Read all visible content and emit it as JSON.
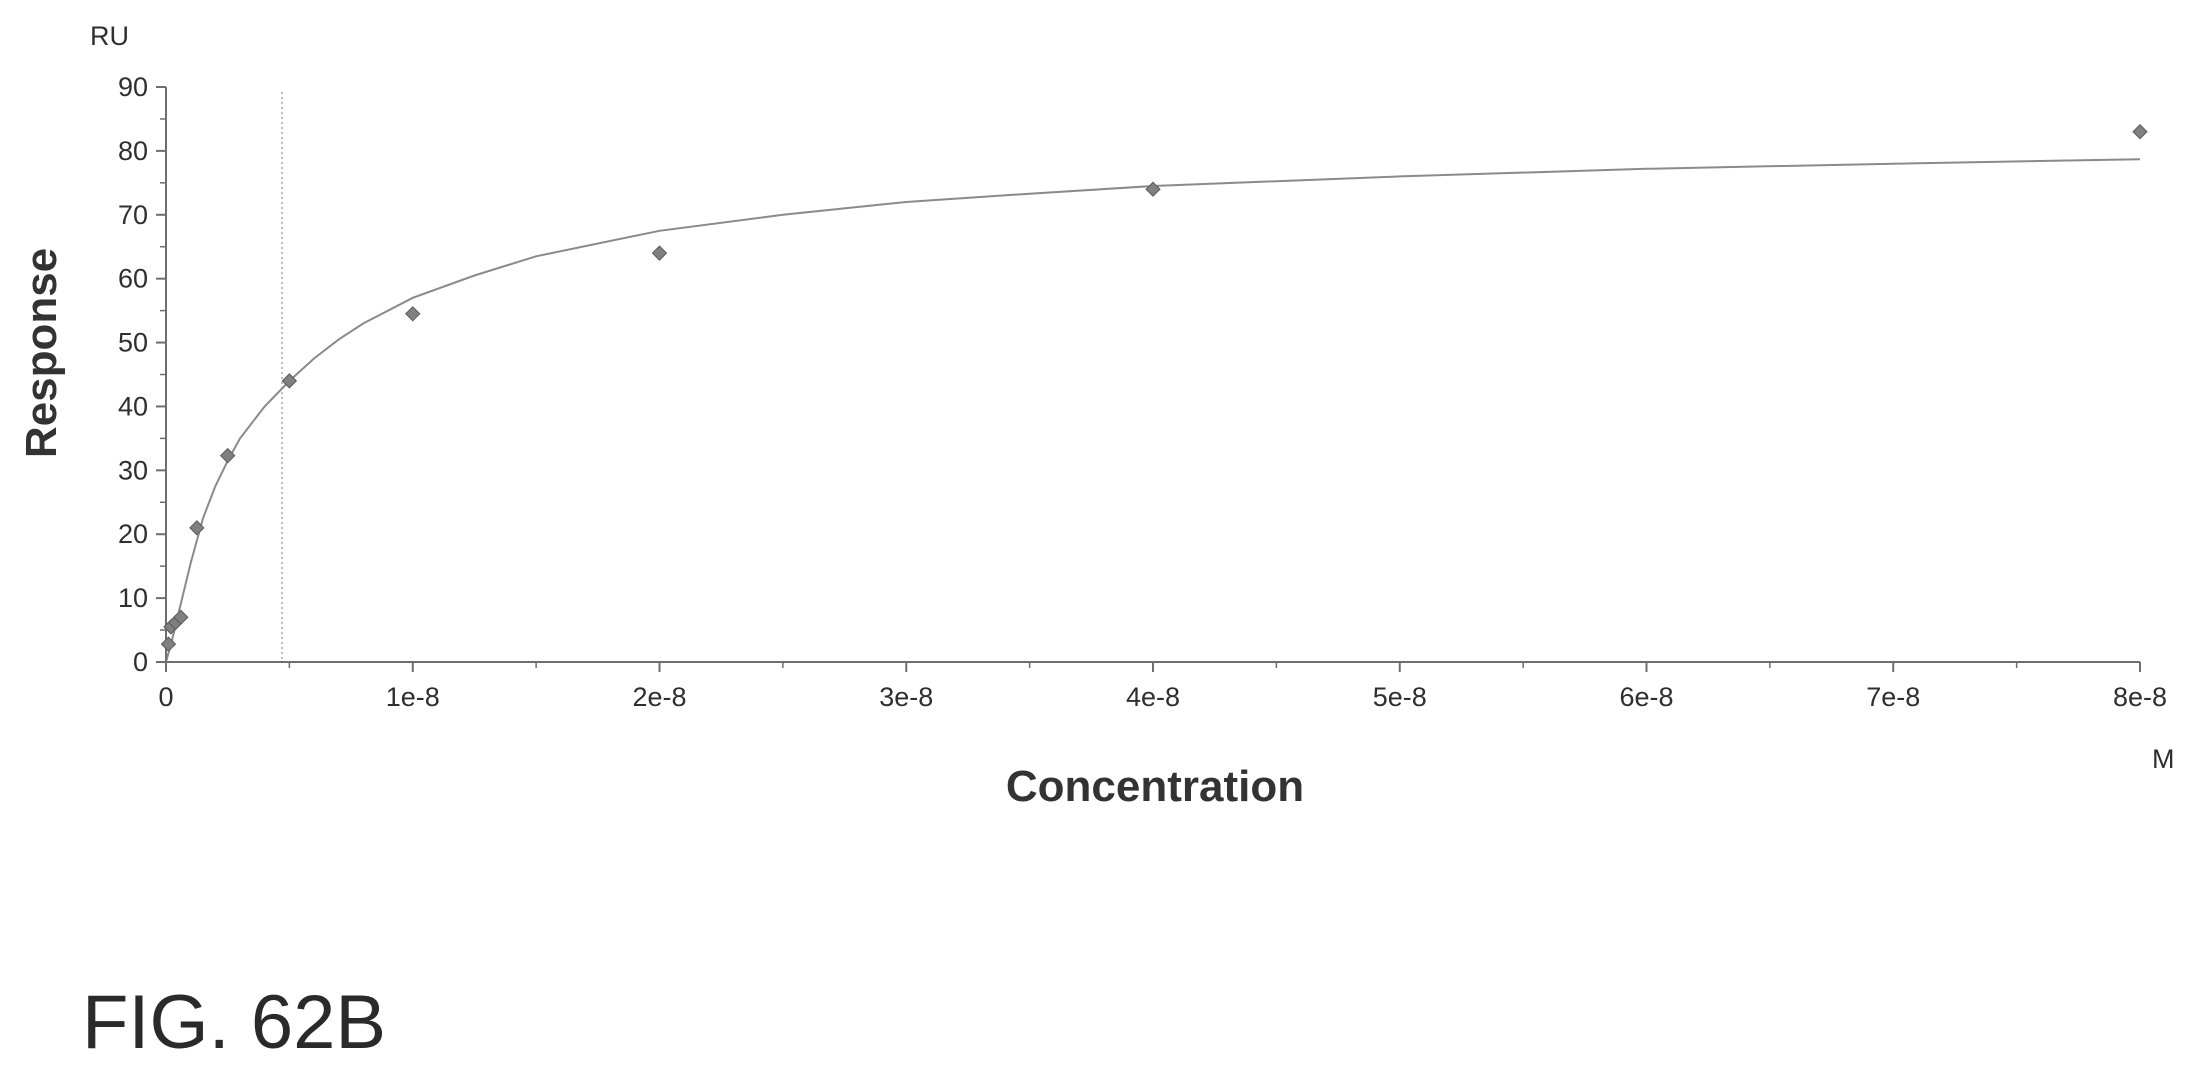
{
  "figure_label": "FIG. 62B",
  "chart_data": {
    "type": "scatter",
    "xlabel": "Concentration",
    "ylabel": "Response",
    "x_unit": "M",
    "y_unit": "RU",
    "xlim": [
      0,
      8e-08
    ],
    "ylim": [
      0,
      90
    ],
    "x_ticks": [
      {
        "value": 0,
        "label": "0"
      },
      {
        "value": 1e-08,
        "label": "1e-8"
      },
      {
        "value": 2e-08,
        "label": "2e-8"
      },
      {
        "value": 3e-08,
        "label": "3e-8"
      },
      {
        "value": 4e-08,
        "label": "4e-8"
      },
      {
        "value": 5e-08,
        "label": "5e-8"
      },
      {
        "value": 6e-08,
        "label": "6e-8"
      },
      {
        "value": 7e-08,
        "label": "7e-8"
      },
      {
        "value": 8e-08,
        "label": "8e-8"
      }
    ],
    "y_ticks": [
      {
        "value": 0,
        "label": "0"
      },
      {
        "value": 10,
        "label": "10"
      },
      {
        "value": 20,
        "label": "20"
      },
      {
        "value": 30,
        "label": "30"
      },
      {
        "value": 40,
        "label": "40"
      },
      {
        "value": 50,
        "label": "50"
      },
      {
        "value": 60,
        "label": "60"
      },
      {
        "value": 70,
        "label": "70"
      },
      {
        "value": 80,
        "label": "80"
      },
      {
        "value": 90,
        "label": "90"
      }
    ],
    "points": [
      {
        "x": 1e-10,
        "y": 2.8
      },
      {
        "x": 2e-10,
        "y": 5.5
      },
      {
        "x": 3.9e-10,
        "y": 6.2
      },
      {
        "x": 6e-10,
        "y": 7.0
      },
      {
        "x": 1.25e-09,
        "y": 21.0
      },
      {
        "x": 2.5e-09,
        "y": 32.3
      },
      {
        "x": 5e-09,
        "y": 44.0
      },
      {
        "x": 1e-08,
        "y": 54.5
      },
      {
        "x": 2e-08,
        "y": 64.0
      },
      {
        "x": 4e-08,
        "y": 74.0
      },
      {
        "x": 8e-08,
        "y": 83.0
      }
    ],
    "fit_curve": [
      {
        "x": 0,
        "y": 0
      },
      {
        "x": 2.5e-10,
        "y": 3.5
      },
      {
        "x": 5e-10,
        "y": 7.5
      },
      {
        "x": 1e-09,
        "y": 15.5
      },
      {
        "x": 1.5e-09,
        "y": 22.5
      },
      {
        "x": 2e-09,
        "y": 27.5
      },
      {
        "x": 2.5e-09,
        "y": 31.5
      },
      {
        "x": 3e-09,
        "y": 35.0
      },
      {
        "x": 4e-09,
        "y": 40.0
      },
      {
        "x": 5e-09,
        "y": 44.0
      },
      {
        "x": 6e-09,
        "y": 47.5
      },
      {
        "x": 7e-09,
        "y": 50.5
      },
      {
        "x": 8e-09,
        "y": 53.0
      },
      {
        "x": 1e-08,
        "y": 57.0
      },
      {
        "x": 1.25e-08,
        "y": 60.5
      },
      {
        "x": 1.5e-08,
        "y": 63.5
      },
      {
        "x": 2e-08,
        "y": 67.5
      },
      {
        "x": 2.5e-08,
        "y": 70.0
      },
      {
        "x": 3e-08,
        "y": 72.0
      },
      {
        "x": 3.5e-08,
        "y": 73.3
      },
      {
        "x": 4e-08,
        "y": 74.5
      },
      {
        "x": 5e-08,
        "y": 76.0
      },
      {
        "x": 6e-08,
        "y": 77.2
      },
      {
        "x": 7e-08,
        "y": 78.0
      },
      {
        "x": 8e-08,
        "y": 78.7
      }
    ],
    "reference_line_x": 4.7e-09,
    "grid": false,
    "colors": {
      "marker": "#808080",
      "curve": "#8a8a8a",
      "axis": "#6e6e6e",
      "reference_line": "#a8a8a8"
    }
  }
}
